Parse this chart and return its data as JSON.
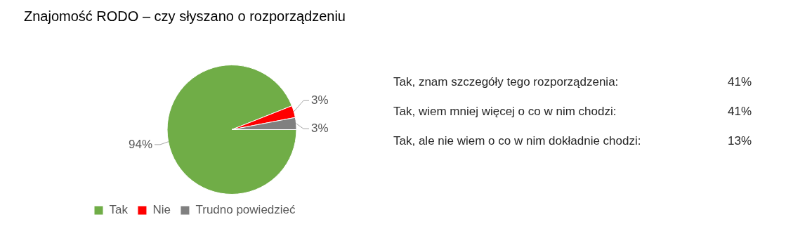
{
  "chart_data": {
    "type": "pie",
    "title": "Znajomość RODO – czy słyszano o rozporządzeniu",
    "categories": [
      "Tak",
      "Nie",
      "Trudno powiedzieć"
    ],
    "values": [
      94,
      3,
      3
    ],
    "colors": [
      "#70ad47",
      "#ff0000",
      "#808080"
    ],
    "value_labels": [
      "94%",
      "3%",
      "3%"
    ],
    "legend": "bottom",
    "annotations": [
      "Tak, znam szczegóły tego rozporządzenia: 41%",
      "Tak, wiem mniej więcej o co w nim chodzi: 41%",
      "Tak, ale nie wiem o co w nim dokładnie chodzi: 13%"
    ]
  }
}
